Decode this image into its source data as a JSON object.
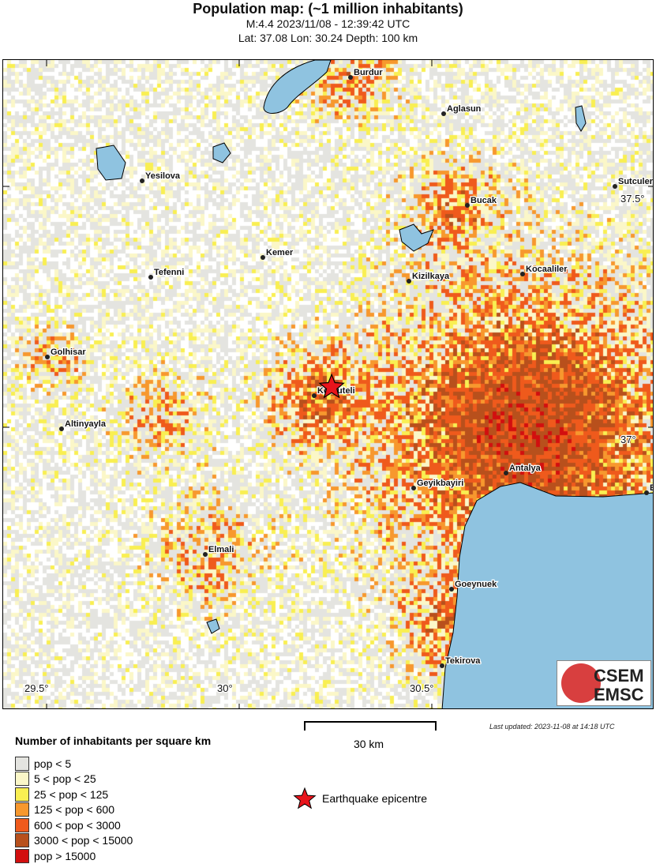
{
  "header": {
    "title": "Population map: (~1 million inhabitants)",
    "event": "M:4.4 2023/11/08 - 12:39:42 UTC",
    "location": "Lat: 37.08 Lon: 30.24 Depth: 100 km"
  },
  "map": {
    "cities": [
      "Burdur",
      "Aglasun",
      "Yesilova",
      "Sutculer",
      "Bucak",
      "Kemer",
      "Tefenni",
      "Kizilkaya",
      "Kocaaliler",
      "Golhisar",
      "Korkuteli",
      "Altinyayla",
      "Antalya",
      "Geyikbayiri",
      "B",
      "Elmali",
      "Goeynuek",
      "Tekirova"
    ],
    "lon_ticks": [
      "29.5°",
      "30°",
      "30.5°"
    ],
    "lat_ticks": [
      "37.5°",
      "37°"
    ],
    "water_color": "#8fc3e0",
    "epicentre": {
      "lat": 37.08,
      "lon": 30.24
    }
  },
  "logo": {
    "line1": "CSEM",
    "line2": "EMSC"
  },
  "updated": "Last updated: 2023-11-08 at 14:18 UTC",
  "scale": {
    "label": "30 km"
  },
  "legend": {
    "title": "Number of inhabitants per square km",
    "items": [
      {
        "label": "pop < 5",
        "color": "#e4e4e0"
      },
      {
        "label": "5 < pop < 25",
        "color": "#fbf7c8"
      },
      {
        "label": "25 < pop < 125",
        "color": "#f9ef52"
      },
      {
        "label": "125 < pop < 600",
        "color": "#f7982e"
      },
      {
        "label": "600 < pop < 3000",
        "color": "#ef5a1c"
      },
      {
        "label": "3000 < pop < 15000",
        "color": "#b8501c"
      },
      {
        "label": "pop > 15000",
        "color": "#d20f0f"
      }
    ],
    "epicentre_label": "Earthquake epicentre"
  }
}
